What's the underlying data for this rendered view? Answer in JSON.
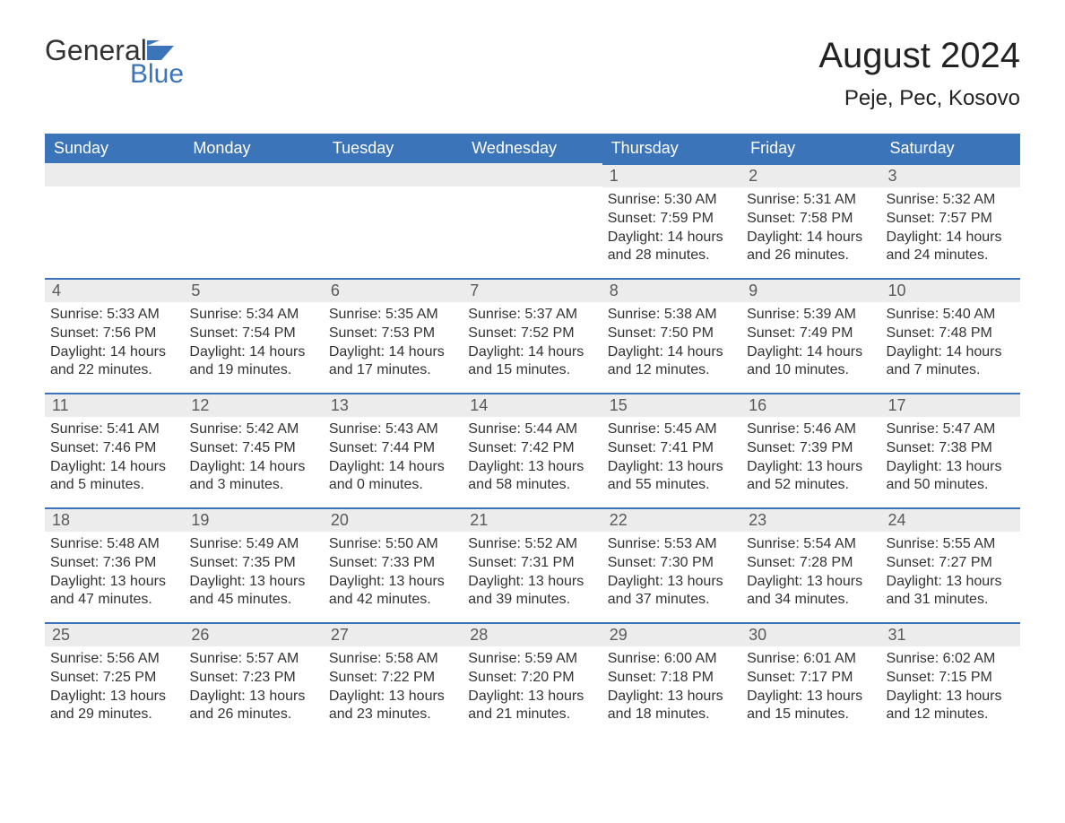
{
  "logo": {
    "word1": "General",
    "word2": "Blue"
  },
  "title": "August 2024",
  "location": "Peje, Pec, Kosovo",
  "colors": {
    "accent": "#3b74b9",
    "header_text": "#ffffff",
    "daynum_bg": "#ececec",
    "body_text": "#333333",
    "background": "#ffffff"
  },
  "days_of_week": [
    "Sunday",
    "Monday",
    "Tuesday",
    "Wednesday",
    "Thursday",
    "Friday",
    "Saturday"
  ],
  "weeks": [
    [
      null,
      null,
      null,
      null,
      {
        "n": "1",
        "sunrise": "Sunrise: 5:30 AM",
        "sunset": "Sunset: 7:59 PM",
        "dl1": "Daylight: 14 hours",
        "dl2": "and 28 minutes."
      },
      {
        "n": "2",
        "sunrise": "Sunrise: 5:31 AM",
        "sunset": "Sunset: 7:58 PM",
        "dl1": "Daylight: 14 hours",
        "dl2": "and 26 minutes."
      },
      {
        "n": "3",
        "sunrise": "Sunrise: 5:32 AM",
        "sunset": "Sunset: 7:57 PM",
        "dl1": "Daylight: 14 hours",
        "dl2": "and 24 minutes."
      }
    ],
    [
      {
        "n": "4",
        "sunrise": "Sunrise: 5:33 AM",
        "sunset": "Sunset: 7:56 PM",
        "dl1": "Daylight: 14 hours",
        "dl2": "and 22 minutes."
      },
      {
        "n": "5",
        "sunrise": "Sunrise: 5:34 AM",
        "sunset": "Sunset: 7:54 PM",
        "dl1": "Daylight: 14 hours",
        "dl2": "and 19 minutes."
      },
      {
        "n": "6",
        "sunrise": "Sunrise: 5:35 AM",
        "sunset": "Sunset: 7:53 PM",
        "dl1": "Daylight: 14 hours",
        "dl2": "and 17 minutes."
      },
      {
        "n": "7",
        "sunrise": "Sunrise: 5:37 AM",
        "sunset": "Sunset: 7:52 PM",
        "dl1": "Daylight: 14 hours",
        "dl2": "and 15 minutes."
      },
      {
        "n": "8",
        "sunrise": "Sunrise: 5:38 AM",
        "sunset": "Sunset: 7:50 PM",
        "dl1": "Daylight: 14 hours",
        "dl2": "and 12 minutes."
      },
      {
        "n": "9",
        "sunrise": "Sunrise: 5:39 AM",
        "sunset": "Sunset: 7:49 PM",
        "dl1": "Daylight: 14 hours",
        "dl2": "and 10 minutes."
      },
      {
        "n": "10",
        "sunrise": "Sunrise: 5:40 AM",
        "sunset": "Sunset: 7:48 PM",
        "dl1": "Daylight: 14 hours",
        "dl2": "and 7 minutes."
      }
    ],
    [
      {
        "n": "11",
        "sunrise": "Sunrise: 5:41 AM",
        "sunset": "Sunset: 7:46 PM",
        "dl1": "Daylight: 14 hours",
        "dl2": "and 5 minutes."
      },
      {
        "n": "12",
        "sunrise": "Sunrise: 5:42 AM",
        "sunset": "Sunset: 7:45 PM",
        "dl1": "Daylight: 14 hours",
        "dl2": "and 3 minutes."
      },
      {
        "n": "13",
        "sunrise": "Sunrise: 5:43 AM",
        "sunset": "Sunset: 7:44 PM",
        "dl1": "Daylight: 14 hours",
        "dl2": "and 0 minutes."
      },
      {
        "n": "14",
        "sunrise": "Sunrise: 5:44 AM",
        "sunset": "Sunset: 7:42 PM",
        "dl1": "Daylight: 13 hours",
        "dl2": "and 58 minutes."
      },
      {
        "n": "15",
        "sunrise": "Sunrise: 5:45 AM",
        "sunset": "Sunset: 7:41 PM",
        "dl1": "Daylight: 13 hours",
        "dl2": "and 55 minutes."
      },
      {
        "n": "16",
        "sunrise": "Sunrise: 5:46 AM",
        "sunset": "Sunset: 7:39 PM",
        "dl1": "Daylight: 13 hours",
        "dl2": "and 52 minutes."
      },
      {
        "n": "17",
        "sunrise": "Sunrise: 5:47 AM",
        "sunset": "Sunset: 7:38 PM",
        "dl1": "Daylight: 13 hours",
        "dl2": "and 50 minutes."
      }
    ],
    [
      {
        "n": "18",
        "sunrise": "Sunrise: 5:48 AM",
        "sunset": "Sunset: 7:36 PM",
        "dl1": "Daylight: 13 hours",
        "dl2": "and 47 minutes."
      },
      {
        "n": "19",
        "sunrise": "Sunrise: 5:49 AM",
        "sunset": "Sunset: 7:35 PM",
        "dl1": "Daylight: 13 hours",
        "dl2": "and 45 minutes."
      },
      {
        "n": "20",
        "sunrise": "Sunrise: 5:50 AM",
        "sunset": "Sunset: 7:33 PM",
        "dl1": "Daylight: 13 hours",
        "dl2": "and 42 minutes."
      },
      {
        "n": "21",
        "sunrise": "Sunrise: 5:52 AM",
        "sunset": "Sunset: 7:31 PM",
        "dl1": "Daylight: 13 hours",
        "dl2": "and 39 minutes."
      },
      {
        "n": "22",
        "sunrise": "Sunrise: 5:53 AM",
        "sunset": "Sunset: 7:30 PM",
        "dl1": "Daylight: 13 hours",
        "dl2": "and 37 minutes."
      },
      {
        "n": "23",
        "sunrise": "Sunrise: 5:54 AM",
        "sunset": "Sunset: 7:28 PM",
        "dl1": "Daylight: 13 hours",
        "dl2": "and 34 minutes."
      },
      {
        "n": "24",
        "sunrise": "Sunrise: 5:55 AM",
        "sunset": "Sunset: 7:27 PM",
        "dl1": "Daylight: 13 hours",
        "dl2": "and 31 minutes."
      }
    ],
    [
      {
        "n": "25",
        "sunrise": "Sunrise: 5:56 AM",
        "sunset": "Sunset: 7:25 PM",
        "dl1": "Daylight: 13 hours",
        "dl2": "and 29 minutes."
      },
      {
        "n": "26",
        "sunrise": "Sunrise: 5:57 AM",
        "sunset": "Sunset: 7:23 PM",
        "dl1": "Daylight: 13 hours",
        "dl2": "and 26 minutes."
      },
      {
        "n": "27",
        "sunrise": "Sunrise: 5:58 AM",
        "sunset": "Sunset: 7:22 PM",
        "dl1": "Daylight: 13 hours",
        "dl2": "and 23 minutes."
      },
      {
        "n": "28",
        "sunrise": "Sunrise: 5:59 AM",
        "sunset": "Sunset: 7:20 PM",
        "dl1": "Daylight: 13 hours",
        "dl2": "and 21 minutes."
      },
      {
        "n": "29",
        "sunrise": "Sunrise: 6:00 AM",
        "sunset": "Sunset: 7:18 PM",
        "dl1": "Daylight: 13 hours",
        "dl2": "and 18 minutes."
      },
      {
        "n": "30",
        "sunrise": "Sunrise: 6:01 AM",
        "sunset": "Sunset: 7:17 PM",
        "dl1": "Daylight: 13 hours",
        "dl2": "and 15 minutes."
      },
      {
        "n": "31",
        "sunrise": "Sunrise: 6:02 AM",
        "sunset": "Sunset: 7:15 PM",
        "dl1": "Daylight: 13 hours",
        "dl2": "and 12 minutes."
      }
    ]
  ]
}
